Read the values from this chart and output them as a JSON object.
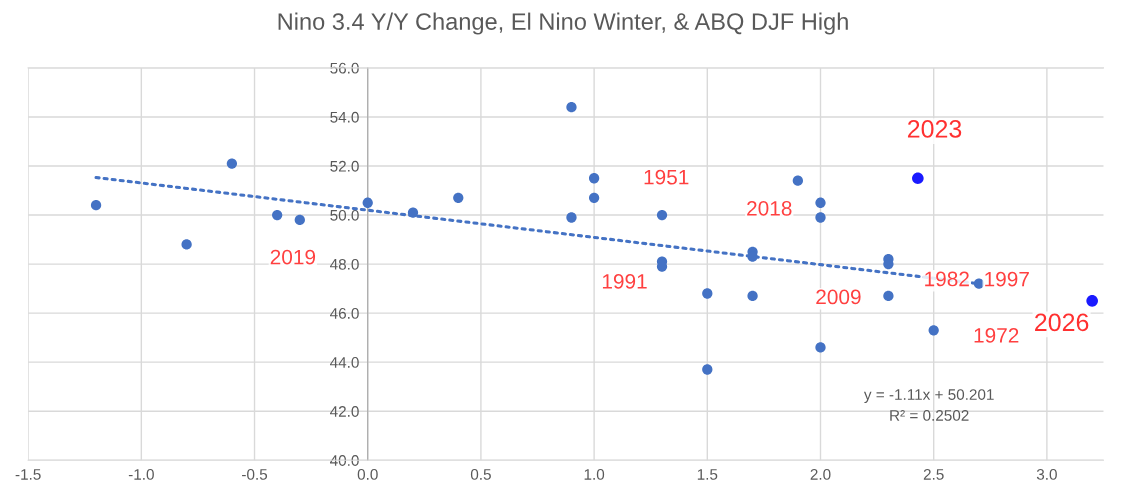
{
  "chart_data": {
    "type": "scatter",
    "title": "Nino 3.4 Y/Y Change, El Nino Winter, & ABQ DJF High",
    "grid": true,
    "xlim": [
      -1.5,
      3.25
    ],
    "xticks": [
      {
        "value": -1.5,
        "label": "-1.5"
      },
      {
        "value": -1.0,
        "label": "-1.0"
      },
      {
        "value": -0.5,
        "label": "-0.5"
      },
      {
        "value": 0.0,
        "label": "0.0"
      },
      {
        "value": 0.5,
        "label": "0.5"
      },
      {
        "value": 1.0,
        "label": "1.0"
      },
      {
        "value": 1.5,
        "label": "1.5"
      },
      {
        "value": 2.0,
        "label": "2.0"
      },
      {
        "value": 2.5,
        "label": "2.5"
      },
      {
        "value": 3.0,
        "label": "3.0"
      }
    ],
    "ylim": [
      40,
      56
    ],
    "yticks": [
      {
        "value": 40,
        "label": "40.0"
      },
      {
        "value": 42,
        "label": "42.0"
      },
      {
        "value": 44,
        "label": "44.0"
      },
      {
        "value": 46,
        "label": "46.0"
      },
      {
        "value": 48,
        "label": "48.0"
      },
      {
        "value": 50,
        "label": "50.0"
      },
      {
        "value": 52,
        "label": "52.0"
      },
      {
        "value": 54,
        "label": "54.0"
      },
      {
        "value": 56,
        "label": "56.0"
      }
    ],
    "series": [
      {
        "marker": "circle",
        "color": "#4472c4",
        "x": [
          -1.2,
          -0.8,
          -0.6,
          -0.4,
          -0.3,
          0.0,
          0.2,
          0.4,
          0.9,
          0.9,
          1.0,
          1.0,
          1.3,
          1.3,
          1.3,
          1.5,
          1.5,
          1.7,
          1.7,
          1.7,
          1.9,
          2.0,
          2.0,
          2.0,
          2.3,
          2.3,
          2.3,
          2.5,
          2.7
        ],
        "values": [
          50.4,
          48.8,
          52.1,
          50.0,
          49.8,
          50.5,
          50.1,
          50.7,
          54.4,
          49.9,
          51.5,
          50.7,
          50.0,
          48.1,
          47.9,
          46.8,
          43.7,
          48.5,
          48.3,
          46.7,
          51.4,
          50.5,
          49.9,
          44.6,
          48.2,
          48.0,
          46.7,
          45.3,
          47.2
        ]
      },
      {
        "type": "line",
        "marker": "none",
        "color": "#4472c4",
        "line_style": "dotted",
        "x": [
          -1.2,
          2.7
        ],
        "values": [
          51.53,
          47.2
        ]
      },
      {
        "marker": "circle",
        "color": "#1a1aff",
        "x": [
          2.43
        ],
        "values": [
          51.5
        ]
      },
      {
        "marker": "circle",
        "color": "#1a1aff",
        "x": [
          3.2
        ],
        "values": [
          46.5
        ]
      }
    ],
    "annotations": [
      {
        "text": "2019",
        "x": -0.3,
        "y": 49.8
      },
      {
        "text": "1951",
        "x": 1.3,
        "y": 50.0
      },
      {
        "text": "1991",
        "x": 1.3,
        "y": 47.9
      },
      {
        "text": "2018",
        "x": 1.7,
        "y": 48.5
      },
      {
        "text": "1982",
        "x": 2.3,
        "y": 48.0
      },
      {
        "text": "2009",
        "x": 2.3,
        "y": 46.7
      },
      {
        "text": "1972",
        "x": 2.5,
        "y": 45.3
      },
      {
        "text": "1997",
        "x": 2.7,
        "y": 47.2
      },
      {
        "text": "2023",
        "x": 2.43,
        "y": 51.5
      },
      {
        "text": "2026",
        "x": 3.2,
        "y": 46.5
      },
      "y = -1.11x + 50.201\nR² = 0.2502"
    ]
  }
}
